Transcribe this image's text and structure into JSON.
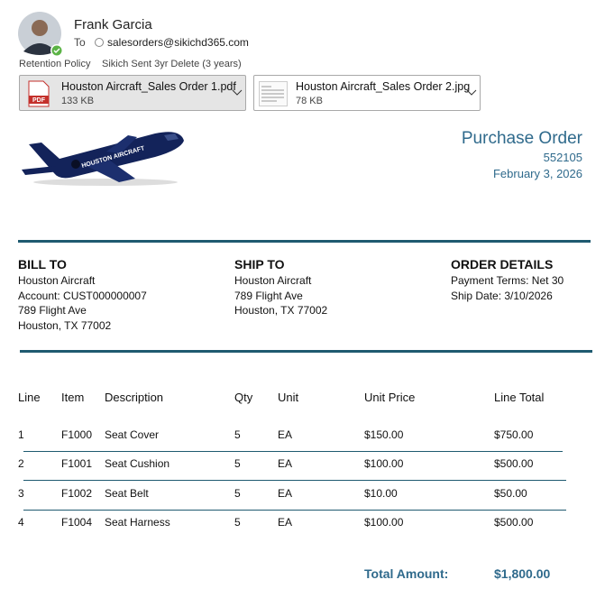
{
  "email": {
    "sender": "Frank Garcia",
    "to_label": "To",
    "to": "salesorders@sikichd365.com",
    "retention_label": "Retention Policy",
    "retention": "Sikich Sent 3yr Delete (3 years)",
    "attachments": [
      {
        "name": "Houston Aircraft_Sales Order 1.pdf",
        "size": "133 KB",
        "icon": "PDF"
      },
      {
        "name": "Houston Aircraft_Sales Order 2.jpg",
        "size": "78 KB"
      }
    ]
  },
  "document": {
    "logo_text": "HOUSTON AIRCRAFT",
    "title": "Purchase Order",
    "number": "552105",
    "date": "February 3, 2026",
    "sections": [
      {
        "heading": "BILL TO",
        "lines": [
          "Houston Aircraft",
          "Account: CUST000000007",
          "789 Flight Ave",
          "Houston, TX 77002"
        ]
      },
      {
        "heading": "SHIP TO",
        "lines": [
          "Houston Aircraft",
          "789 Flight Ave",
          "Houston, TX 77002"
        ]
      },
      {
        "heading": "ORDER DETAILS",
        "lines": [
          "Payment Terms: Net 30",
          "Ship Date: 3/10/2026"
        ]
      }
    ],
    "table": {
      "headers": [
        "Line",
        "Item",
        "Description",
        "Qty",
        "Unit",
        "Unit Price",
        "Line Total"
      ],
      "rows": [
        [
          "1",
          "F1000",
          "Seat Cover",
          "5",
          "EA",
          "$150.00",
          "$750.00"
        ],
        [
          "2",
          "F1001",
          "Seat Cushion",
          "5",
          "EA",
          "$100.00",
          "$500.00"
        ],
        [
          "3",
          "F1002",
          "Seat Belt",
          "5",
          "EA",
          "$10.00",
          "$50.00"
        ],
        [
          "4",
          "F1004",
          "Seat Harness",
          "5",
          "EA",
          "$100.00",
          "$500.00"
        ]
      ]
    },
    "total_label": "Total Amount:",
    "total": "$1,800.00"
  }
}
